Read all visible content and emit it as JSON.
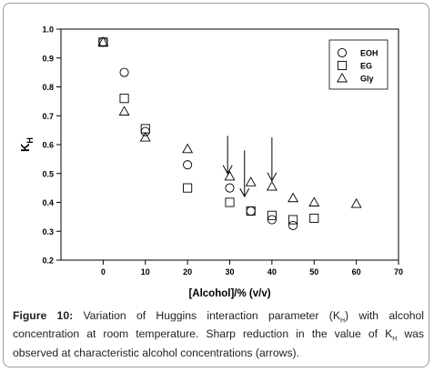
{
  "chart_data": {
    "type": "scatter",
    "xlabel": "[Alcohol]/% (v/v)",
    "ylabel": "K",
    "ylabel_sub": "H",
    "xlim": [
      -10,
      70
    ],
    "ylim": [
      0.2,
      1.0
    ],
    "xticks": [
      0,
      10,
      20,
      30,
      40,
      50,
      60,
      70
    ],
    "yticks": [
      0.2,
      0.3,
      0.4,
      0.5,
      0.6,
      0.7,
      0.8,
      0.9,
      1.0
    ],
    "grid": false,
    "legend_position": "top-right",
    "series": [
      {
        "name": "EOH",
        "marker": "circle",
        "x": [
          0,
          5,
          10,
          20,
          30,
          35,
          40,
          45
        ],
        "y": [
          0.955,
          0.85,
          0.645,
          0.53,
          0.45,
          0.37,
          0.34,
          0.32
        ]
      },
      {
        "name": "EG",
        "marker": "square",
        "x": [
          0,
          5,
          10,
          20,
          30,
          35,
          40,
          45,
          50
        ],
        "y": [
          0.955,
          0.76,
          0.655,
          0.45,
          0.4,
          0.37,
          0.355,
          0.34,
          0.345
        ]
      },
      {
        "name": "Gly",
        "marker": "triangle",
        "x": [
          0,
          5,
          10,
          20,
          30,
          35,
          40,
          45,
          50,
          60
        ],
        "y": [
          0.955,
          0.715,
          0.625,
          0.585,
          0.49,
          0.47,
          0.455,
          0.415,
          0.4,
          0.395
        ]
      }
    ],
    "arrows": [
      {
        "x": 29.5,
        "y_top": 0.63,
        "y_tip": 0.5
      },
      {
        "x": 33.5,
        "y_top": 0.58,
        "y_tip": 0.42
      },
      {
        "x": 40,
        "y_top": 0.625,
        "y_tip": 0.475
      }
    ]
  },
  "caption": {
    "label": "Figure 10:",
    "text": " Variation of Huggins interaction parameter (K",
    "sub": "H",
    "text2": ") with alcohol concentration at room temperature. Sharp reduction in the value of K",
    "sub2": "H",
    "text3": " was observed at characteristic alcohol concentrations (arrows)."
  }
}
